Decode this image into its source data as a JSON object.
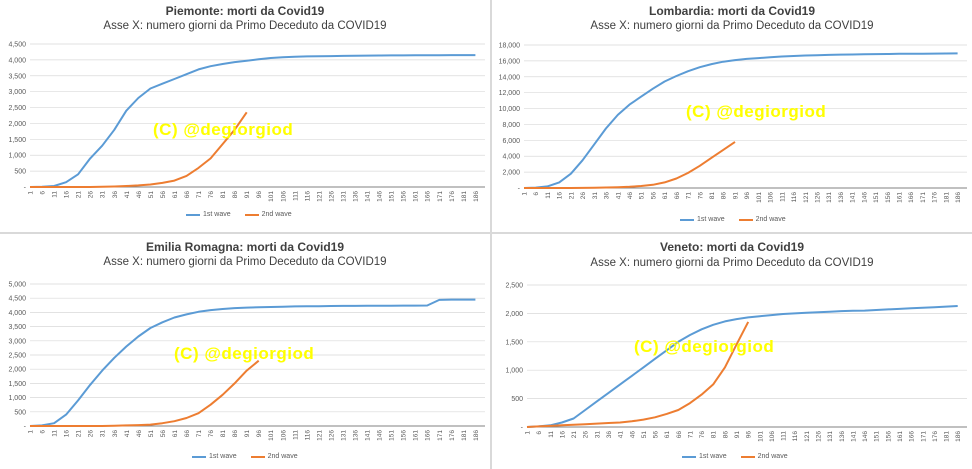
{
  "panels": [
    {
      "title": "Piemonte: morti da Covid19",
      "subtitle": "Asse X: numero giorni da Primo Deceduto da COVID19",
      "watermark": "(C) @degiorgiod",
      "legend": [
        "1st wave",
        "2nd wave"
      ]
    },
    {
      "title": "Lombardia: morti da Covid19",
      "subtitle": "Asse X: numero giorni da Primo Deceduto da COVID19",
      "watermark": "(C) @degiorgiod",
      "legend": [
        "1st wave",
        "2nd wave"
      ]
    },
    {
      "title": "Emilia Romagna: morti da Covid19",
      "subtitle": "Asse X: numero giorni da Primo Deceduto da COVID19",
      "watermark": "(C) @degiorgiod",
      "legend": [
        "1st wave",
        "2nd wave"
      ]
    },
    {
      "title": "Veneto: morti da Covid19",
      "subtitle": "Asse X: numero giorni da Primo Deceduto da COVID19",
      "watermark": "(C) @degiorgiod",
      "legend": [
        "1st wave",
        "2nd wave"
      ]
    }
  ],
  "colors": {
    "wave1": "#5b9bd5",
    "wave2": "#ed7d31",
    "grid": "#d9d9d9",
    "axis": "#595959",
    "watermark": "#ffff00"
  },
  "chart_data": [
    {
      "type": "line",
      "title": "Piemonte: morti da Covid19",
      "subtitle": "Asse X: numero giorni da Primo Deceduto da COVID19",
      "xlim": [
        1,
        190
      ],
      "ylim": [
        0,
        4500
      ],
      "yticks": [
        0,
        500,
        1000,
        1500,
        2000,
        2500,
        3000,
        3500,
        4000,
        4500
      ],
      "ytick_labels": [
        "-",
        "500",
        "1,000",
        "1,500",
        "2,000",
        "2,500",
        "3,000",
        "3,500",
        "4,000",
        "4,500"
      ],
      "xtick_labels": [
        "1",
        "6",
        "11",
        "16",
        "21",
        "26",
        "31",
        "36",
        "41",
        "46",
        "51",
        "56",
        "61",
        "66",
        "71",
        "76",
        "81",
        "86",
        "91",
        "96",
        "101",
        "106",
        "111",
        "116",
        "121",
        "126",
        "131",
        "136",
        "141",
        "146",
        "151",
        "156",
        "161",
        "166",
        "171",
        "176",
        "181",
        "186"
      ],
      "grid": true,
      "legend": "bottom",
      "series": [
        {
          "name": "1st wave",
          "x": [
            1,
            6,
            11,
            16,
            21,
            26,
            31,
            36,
            41,
            46,
            51,
            56,
            61,
            66,
            71,
            76,
            81,
            86,
            91,
            96,
            101,
            106,
            111,
            116,
            121,
            126,
            131,
            136,
            141,
            146,
            151,
            156,
            161,
            166,
            171,
            176,
            181,
            186
          ],
          "y": [
            0,
            5,
            30,
            150,
            400,
            900,
            1300,
            1800,
            2400,
            2800,
            3100,
            3250,
            3400,
            3550,
            3700,
            3800,
            3870,
            3930,
            3970,
            4020,
            4060,
            4080,
            4100,
            4110,
            4115,
            4120,
            4125,
            4130,
            4135,
            4138,
            4140,
            4142,
            4144,
            4146,
            4148,
            4150,
            4150,
            4150
          ]
        },
        {
          "name": "2nd wave",
          "x": [
            1,
            6,
            11,
            16,
            21,
            26,
            31,
            36,
            41,
            46,
            51,
            56,
            61,
            66,
            71,
            76,
            81,
            86,
            91
          ],
          "y": [
            0,
            0,
            0,
            0,
            0,
            0,
            5,
            15,
            30,
            50,
            80,
            130,
            200,
            350,
            600,
            900,
            1350,
            1800,
            2350
          ]
        }
      ]
    },
    {
      "type": "line",
      "title": "Lombardia: morti da Covid19",
      "subtitle": "Asse X: numero giorni da Primo Deceduto da COVID19",
      "xlim": [
        1,
        190
      ],
      "ylim": [
        0,
        18000
      ],
      "yticks": [
        0,
        2000,
        4000,
        6000,
        8000,
        10000,
        12000,
        14000,
        16000,
        18000
      ],
      "ytick_labels": [
        "-",
        "2,000",
        "4,000",
        "6,000",
        "8,000",
        "10,000",
        "12,000",
        "14,000",
        "16,000",
        "18,000"
      ],
      "xtick_labels": [
        "1",
        "6",
        "11",
        "16",
        "21",
        "26",
        "31",
        "36",
        "41",
        "46",
        "51",
        "56",
        "61",
        "66",
        "71",
        "76",
        "81",
        "86",
        "91",
        "96",
        "101",
        "106",
        "111",
        "116",
        "121",
        "126",
        "131",
        "136",
        "141",
        "146",
        "151",
        "156",
        "161",
        "166",
        "171",
        "176",
        "181",
        "186"
      ],
      "grid": true,
      "legend": "bottom",
      "series": [
        {
          "name": "1st wave",
          "x": [
            1,
            6,
            11,
            16,
            21,
            26,
            31,
            36,
            41,
            46,
            51,
            56,
            61,
            66,
            71,
            76,
            81,
            86,
            91,
            96,
            101,
            106,
            111,
            116,
            121,
            126,
            131,
            136,
            141,
            146,
            151,
            156,
            161,
            166,
            171,
            176,
            181,
            186
          ],
          "y": [
            0,
            50,
            200,
            700,
            1800,
            3500,
            5500,
            7500,
            9200,
            10500,
            11500,
            12500,
            13400,
            14100,
            14700,
            15200,
            15600,
            15900,
            16100,
            16250,
            16350,
            16450,
            16550,
            16620,
            16680,
            16720,
            16760,
            16790,
            16810,
            16830,
            16850,
            16870,
            16890,
            16900,
            16910,
            16920,
            16930,
            16940
          ]
        },
        {
          "name": "2nd wave",
          "x": [
            1,
            6,
            11,
            16,
            21,
            26,
            31,
            36,
            41,
            46,
            51,
            56,
            61,
            66,
            71,
            76,
            81,
            86,
            91
          ],
          "y": [
            0,
            0,
            0,
            0,
            0,
            10,
            30,
            60,
            100,
            150,
            250,
            400,
            700,
            1200,
            1900,
            2800,
            3800,
            4800,
            5800
          ]
        }
      ]
    },
    {
      "type": "line",
      "title": "Emilia Romagna: morti da Covid19",
      "subtitle": "Asse X: numero giorni da Primo Deceduto da COVID19",
      "xlim": [
        1,
        190
      ],
      "ylim": [
        0,
        5000
      ],
      "yticks": [
        0,
        500,
        1000,
        1500,
        2000,
        2500,
        3000,
        3500,
        4000,
        4500,
        5000
      ],
      "ytick_labels": [
        "-",
        "500",
        "1,000",
        "1,500",
        "2,000",
        "2,500",
        "3,000",
        "3,500",
        "4,000",
        "4,500",
        "5,000"
      ],
      "xtick_labels": [
        "1",
        "6",
        "11",
        "16",
        "21",
        "26",
        "31",
        "36",
        "41",
        "46",
        "51",
        "56",
        "61",
        "66",
        "71",
        "76",
        "81",
        "86",
        "91",
        "96",
        "101",
        "106",
        "111",
        "116",
        "121",
        "126",
        "131",
        "136",
        "141",
        "146",
        "151",
        "156",
        "161",
        "166",
        "171",
        "176",
        "181",
        "186"
      ],
      "grid": true,
      "legend": "bottom",
      "series": [
        {
          "name": "1st wave",
          "x": [
            1,
            6,
            11,
            16,
            21,
            26,
            31,
            36,
            41,
            46,
            51,
            56,
            61,
            66,
            71,
            76,
            81,
            86,
            91,
            96,
            101,
            106,
            111,
            116,
            121,
            126,
            131,
            136,
            141,
            146,
            151,
            156,
            161,
            166,
            171,
            176,
            181,
            186
          ],
          "y": [
            0,
            20,
            100,
            400,
            900,
            1450,
            1950,
            2400,
            2800,
            3150,
            3450,
            3650,
            3820,
            3930,
            4020,
            4080,
            4120,
            4150,
            4170,
            4180,
            4190,
            4200,
            4210,
            4215,
            4220,
            4225,
            4228,
            4230,
            4232,
            4234,
            4236,
            4238,
            4240,
            4242,
            4440,
            4450,
            4450,
            4450
          ]
        },
        {
          "name": "2nd wave",
          "x": [
            1,
            6,
            11,
            16,
            21,
            26,
            31,
            36,
            41,
            46,
            51,
            56,
            61,
            66,
            71,
            76,
            81,
            86,
            91,
            96
          ],
          "y": [
            0,
            0,
            0,
            0,
            0,
            0,
            0,
            10,
            20,
            30,
            50,
            100,
            170,
            280,
            450,
            750,
            1100,
            1500,
            1950,
            2300
          ]
        }
      ]
    },
    {
      "type": "line",
      "title": "Veneto: morti da Covid19",
      "subtitle": "Asse X: numero giorni da Primo Deceduto da COVID19",
      "xlim": [
        1,
        190
      ],
      "ylim": [
        0,
        2500
      ],
      "yticks": [
        0,
        500,
        1000,
        1500,
        2000,
        2500
      ],
      "ytick_labels": [
        "-",
        "500",
        "1,000",
        "1,500",
        "2,000",
        "2,500"
      ],
      "xtick_labels": [
        "1",
        "6",
        "11",
        "16",
        "21",
        "26",
        "31",
        "36",
        "41",
        "46",
        "51",
        "56",
        "61",
        "66",
        "71",
        "76",
        "81",
        "86",
        "91",
        "96",
        "101",
        "106",
        "111",
        "116",
        "121",
        "126",
        "131",
        "136",
        "141",
        "146",
        "151",
        "156",
        "161",
        "166",
        "171",
        "176",
        "181",
        "186"
      ],
      "grid": true,
      "legend": "bottom",
      "series": [
        {
          "name": "1st wave",
          "x": [
            1,
            6,
            11,
            16,
            21,
            26,
            31,
            36,
            41,
            46,
            51,
            56,
            61,
            66,
            71,
            76,
            81,
            86,
            91,
            96,
            101,
            106,
            111,
            116,
            121,
            126,
            131,
            136,
            141,
            146,
            151,
            156,
            161,
            166,
            171,
            176,
            181,
            186
          ],
          "y": [
            0,
            10,
            30,
            80,
            150,
            300,
            450,
            600,
            750,
            900,
            1050,
            1200,
            1350,
            1500,
            1620,
            1720,
            1800,
            1860,
            1900,
            1930,
            1950,
            1970,
            1990,
            2000,
            2010,
            2020,
            2030,
            2040,
            2045,
            2050,
            2060,
            2070,
            2080,
            2090,
            2100,
            2110,
            2120,
            2130
          ]
        },
        {
          "name": "2nd wave",
          "x": [
            1,
            6,
            11,
            16,
            21,
            26,
            31,
            36,
            41,
            46,
            51,
            56,
            61,
            66,
            71,
            76,
            81,
            86,
            91,
            96
          ],
          "y": [
            0,
            10,
            20,
            30,
            40,
            50,
            60,
            70,
            80,
            100,
            130,
            170,
            230,
            300,
            420,
            570,
            750,
            1050,
            1450,
            1850
          ]
        }
      ]
    }
  ]
}
